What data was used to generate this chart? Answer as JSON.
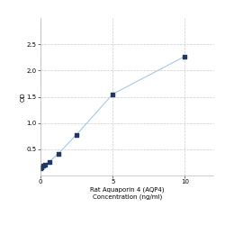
{
  "x": [
    0.0,
    0.078,
    0.156,
    0.313,
    0.625,
    1.25,
    2.5,
    5.0,
    10.0
  ],
  "y": [
    0.131,
    0.161,
    0.183,
    0.21,
    0.265,
    0.42,
    0.78,
    1.55,
    2.27
  ],
  "xlabel_line1": "Rat Aquaporin 4 (AQP4)",
  "xlabel_line2": "Concentration (ng/ml)",
  "ylabel": "OD",
  "xlim": [
    0,
    12
  ],
  "ylim": [
    0,
    3.0
  ],
  "yticks": [
    0.5,
    1.0,
    1.5,
    2.0,
    2.5
  ],
  "xticks": [
    0,
    5,
    10
  ],
  "marker_color": "#1f3864",
  "line_color": "#a8c8e8",
  "marker": "s",
  "marker_size": 3.5,
  "grid_color": "#cccccc",
  "background_color": "#ffffff",
  "tick_fontsize": 5.0,
  "label_fontsize": 5.0,
  "spine_color": "#aaaaaa"
}
